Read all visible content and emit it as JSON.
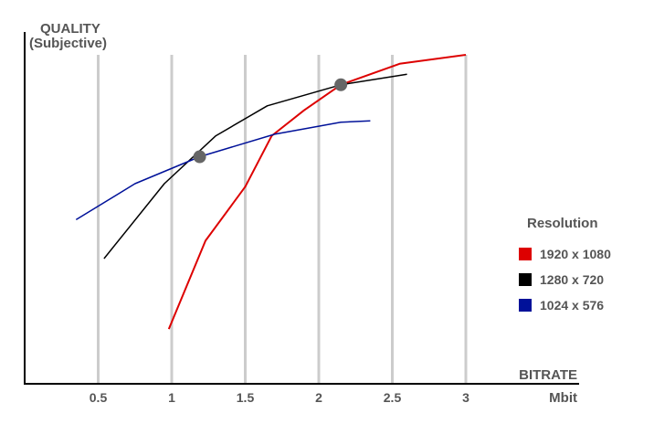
{
  "chart_data": {
    "type": "line",
    "ylabel_line1": "QUALITY",
    "ylabel_line2": "(Subjective)",
    "xlabel": "BITRATE",
    "xunit": "Mbit",
    "xlim": [
      0,
      3.8
    ],
    "ylim": [
      0,
      10
    ],
    "x_ticks": [
      {
        "value": 0.5,
        "label": "0.5"
      },
      {
        "value": 1,
        "label": "1"
      },
      {
        "value": 1.5,
        "label": "1.5"
      },
      {
        "value": 2,
        "label": "2"
      },
      {
        "value": 2.5,
        "label": "2.5"
      },
      {
        "value": 3,
        "label": "3"
      }
    ],
    "grid": "vertical",
    "legend_title": "Resolution",
    "legend_position": "right",
    "series": [
      {
        "name": "1920 x 1080",
        "color": "#dd0000",
        "x": [
          0.98,
          1.23,
          1.5,
          1.68,
          1.9,
          2.15,
          2.55,
          3.0
        ],
        "y": [
          0.85,
          3.8,
          5.6,
          7.3,
          8.15,
          9.0,
          9.7,
          10.0
        ]
      },
      {
        "name": "1280 x 720",
        "color": "#000000",
        "x": [
          0.54,
          0.95,
          1.3,
          1.65,
          2.15,
          2.6
        ],
        "y": [
          3.2,
          5.7,
          7.3,
          8.3,
          9.0,
          9.35
        ]
      },
      {
        "name": "1024 x 576",
        "color": "#001199",
        "x": [
          0.35,
          0.75,
          1.19,
          1.7,
          2.15,
          2.35
        ],
        "y": [
          4.5,
          5.7,
          6.6,
          7.35,
          7.75,
          7.8
        ]
      }
    ],
    "crossover_points": [
      {
        "x": 1.19,
        "y": 6.6
      },
      {
        "x": 2.15,
        "y": 9.0
      }
    ]
  }
}
